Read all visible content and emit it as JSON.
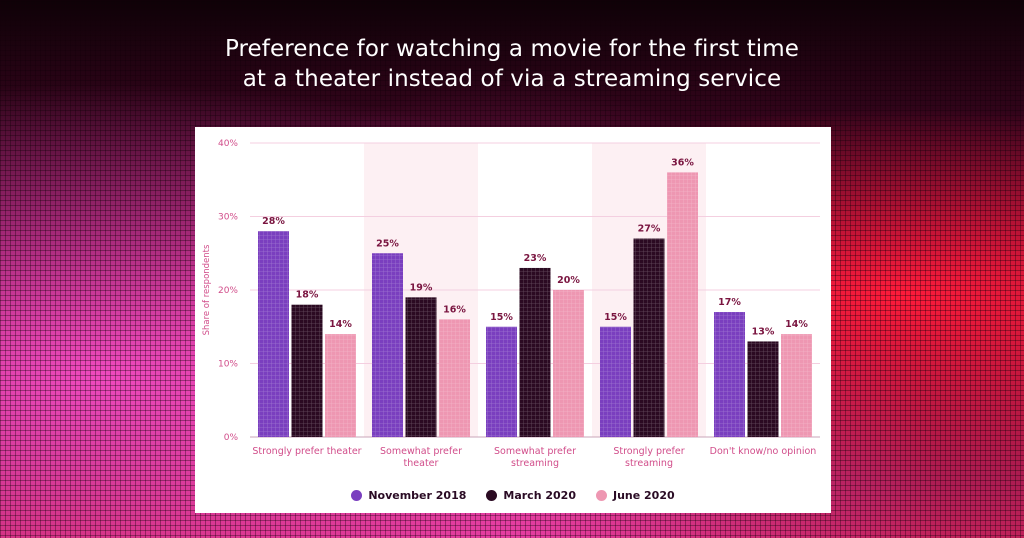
{
  "headline": {
    "line1": "Preference for watching a movie for the first time",
    "line2": "at a theater instead of via a streaming service"
  },
  "chart_data": {
    "type": "bar",
    "categories": [
      [
        "Strongly prefer theater"
      ],
      [
        "Somewhat prefer",
        "theater"
      ],
      [
        "Somewhat prefer",
        "streaming"
      ],
      [
        "Strongly prefer",
        "streaming"
      ],
      [
        "Don't know/no opinion"
      ]
    ],
    "series": [
      {
        "name": "November 2018",
        "color": "#7a3fbf",
        "values": [
          28,
          25,
          15,
          15,
          17
        ]
      },
      {
        "name": "March 2020",
        "color": "#2b0a22",
        "values": [
          18,
          19,
          23,
          27,
          13
        ]
      },
      {
        "name": "June 2020",
        "color": "#ee97b2",
        "values": [
          14,
          16,
          20,
          36,
          14
        ]
      }
    ],
    "value_suffix": "%",
    "ylabel": "Share of respondents",
    "ylim": [
      0,
      40
    ],
    "yticks": [
      "0%",
      "10%",
      "20%",
      "30%",
      "40%"
    ],
    "grid": true,
    "legend_position": "bottom",
    "colors": {
      "axis_text": "#d14d8a",
      "grid": "#f4cfe0",
      "label": "#7a1540",
      "band": "#fdf0f3"
    }
  }
}
